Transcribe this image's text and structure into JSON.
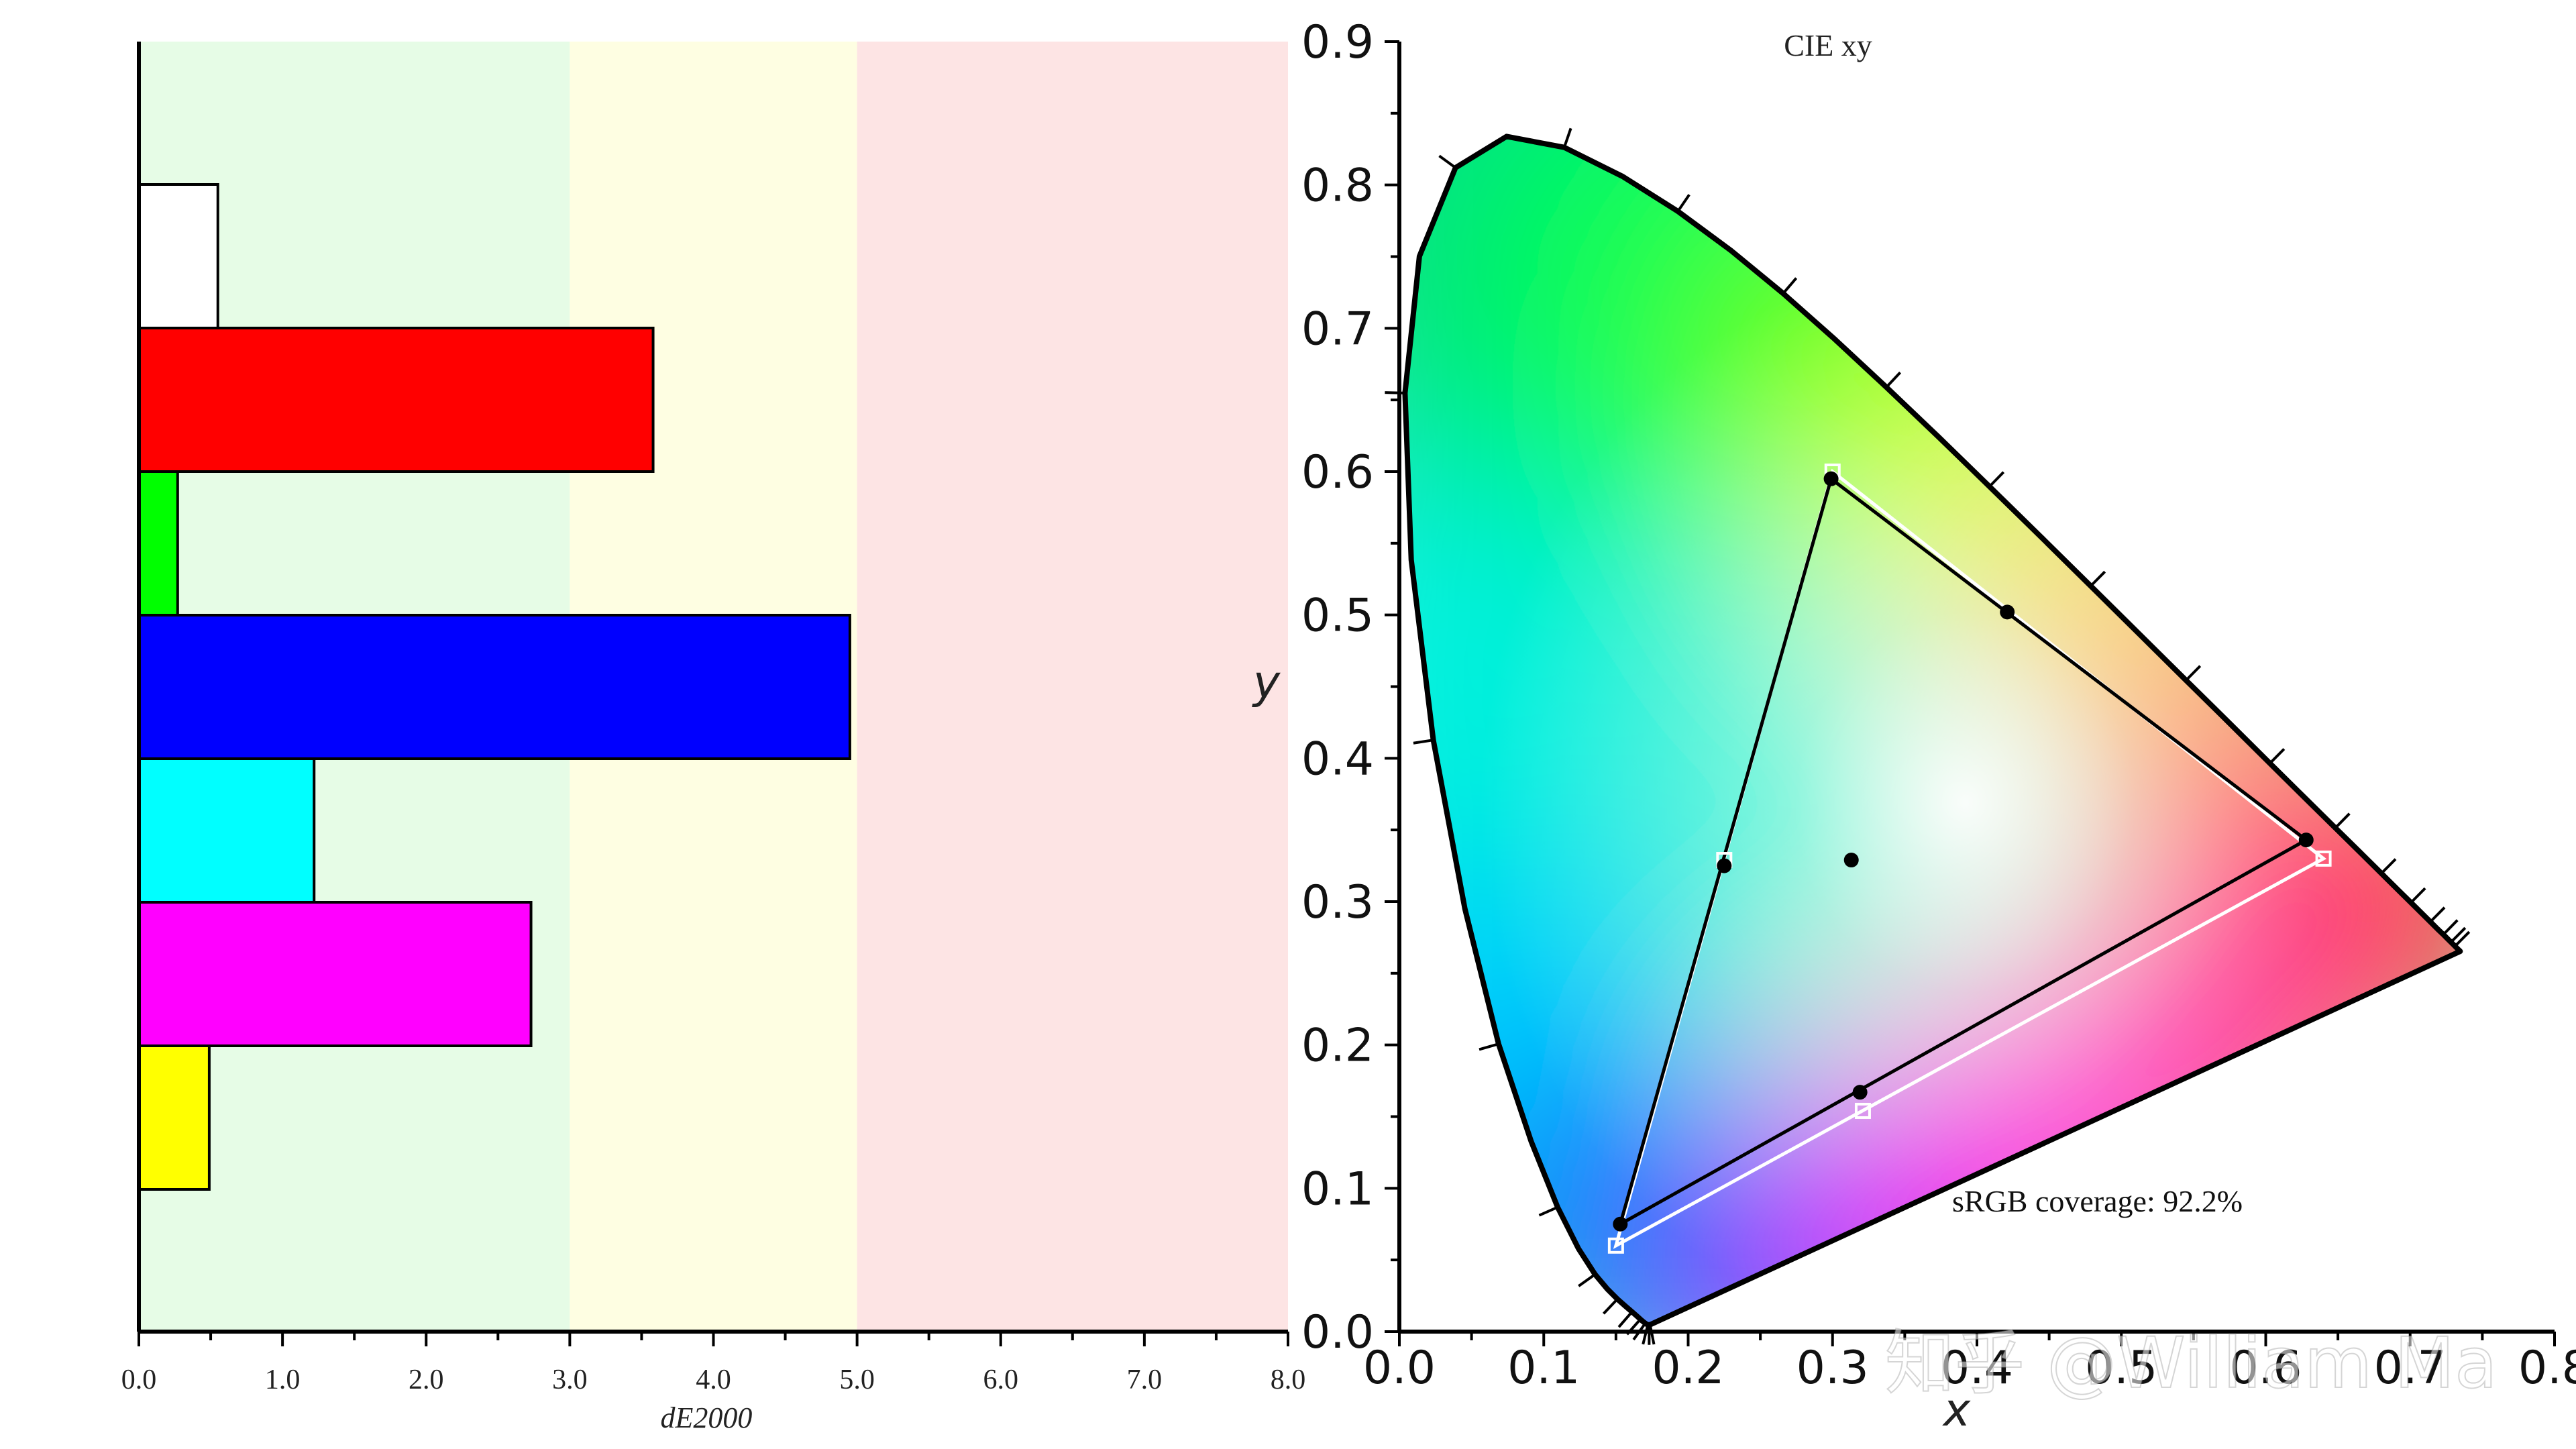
{
  "watermark": "知乎 @William Ma",
  "chart_data": [
    {
      "type": "bar",
      "orientation": "horizontal",
      "xlabel": "dE2000",
      "xlim": [
        0,
        8
      ],
      "xticks": [
        "0.0",
        "1.0",
        "2.0",
        "3.0",
        "4.0",
        "5.0",
        "6.0",
        "7.0",
        "8.0"
      ],
      "categories": [
        "White",
        "Red",
        "Green",
        "Blue",
        "Cyan",
        "Magenta",
        "Yellow"
      ],
      "values": [
        0.55,
        3.58,
        0.27,
        4.95,
        1.22,
        2.73,
        0.49
      ],
      "bar_colors": [
        "#ffffff",
        "#ff0000",
        "#00ff00",
        "#0000ff",
        "#00ffff",
        "#ff00ff",
        "#ffff00"
      ],
      "zones": [
        {
          "from": 0,
          "to": 3,
          "color": "#e6fce6"
        },
        {
          "from": 3,
          "to": 5,
          "color": "#fefee2"
        },
        {
          "from": 5,
          "to": 8,
          "color": "#fde4e4"
        }
      ],
      "grid": false
    },
    {
      "type": "scatter",
      "title": "CIE xy",
      "xlabel": "x",
      "ylabel": "y",
      "xlim": [
        0,
        0.8
      ],
      "ylim": [
        0,
        0.9
      ],
      "xticks": [
        "0.0",
        "0.1",
        "0.2",
        "0.3",
        "0.4",
        "0.5",
        "0.6",
        "0.7",
        "0.8"
      ],
      "yticks": [
        "0.0",
        "0.1",
        "0.2",
        "0.3",
        "0.4",
        "0.5",
        "0.6",
        "0.7",
        "0.8",
        "0.9"
      ],
      "annotation": "sRGB coverage: 92.2%",
      "series": [
        {
          "values": [
            {
              "x": 0.15,
              "y": 0.06
            },
            {
              "x": 0.3,
              "y": 0.6
            },
            {
              "x": 0.64,
              "y": 0.33
            },
            {
              "x": 0.225,
              "y": 0.329
            },
            {
              "x": 0.321,
              "y": 0.154
            }
          ]
        },
        {
          "values": [
            {
              "x": 0.153,
              "y": 0.075
            },
            {
              "x": 0.299,
              "y": 0.595
            },
            {
              "x": 0.628,
              "y": 0.343
            },
            {
              "x": 0.421,
              "y": 0.502
            },
            {
              "x": 0.225,
              "y": 0.325
            },
            {
              "x": 0.319,
              "y": 0.167
            },
            {
              "x": 0.313,
              "y": 0.329
            }
          ]
        }
      ],
      "grid": false
    }
  ]
}
